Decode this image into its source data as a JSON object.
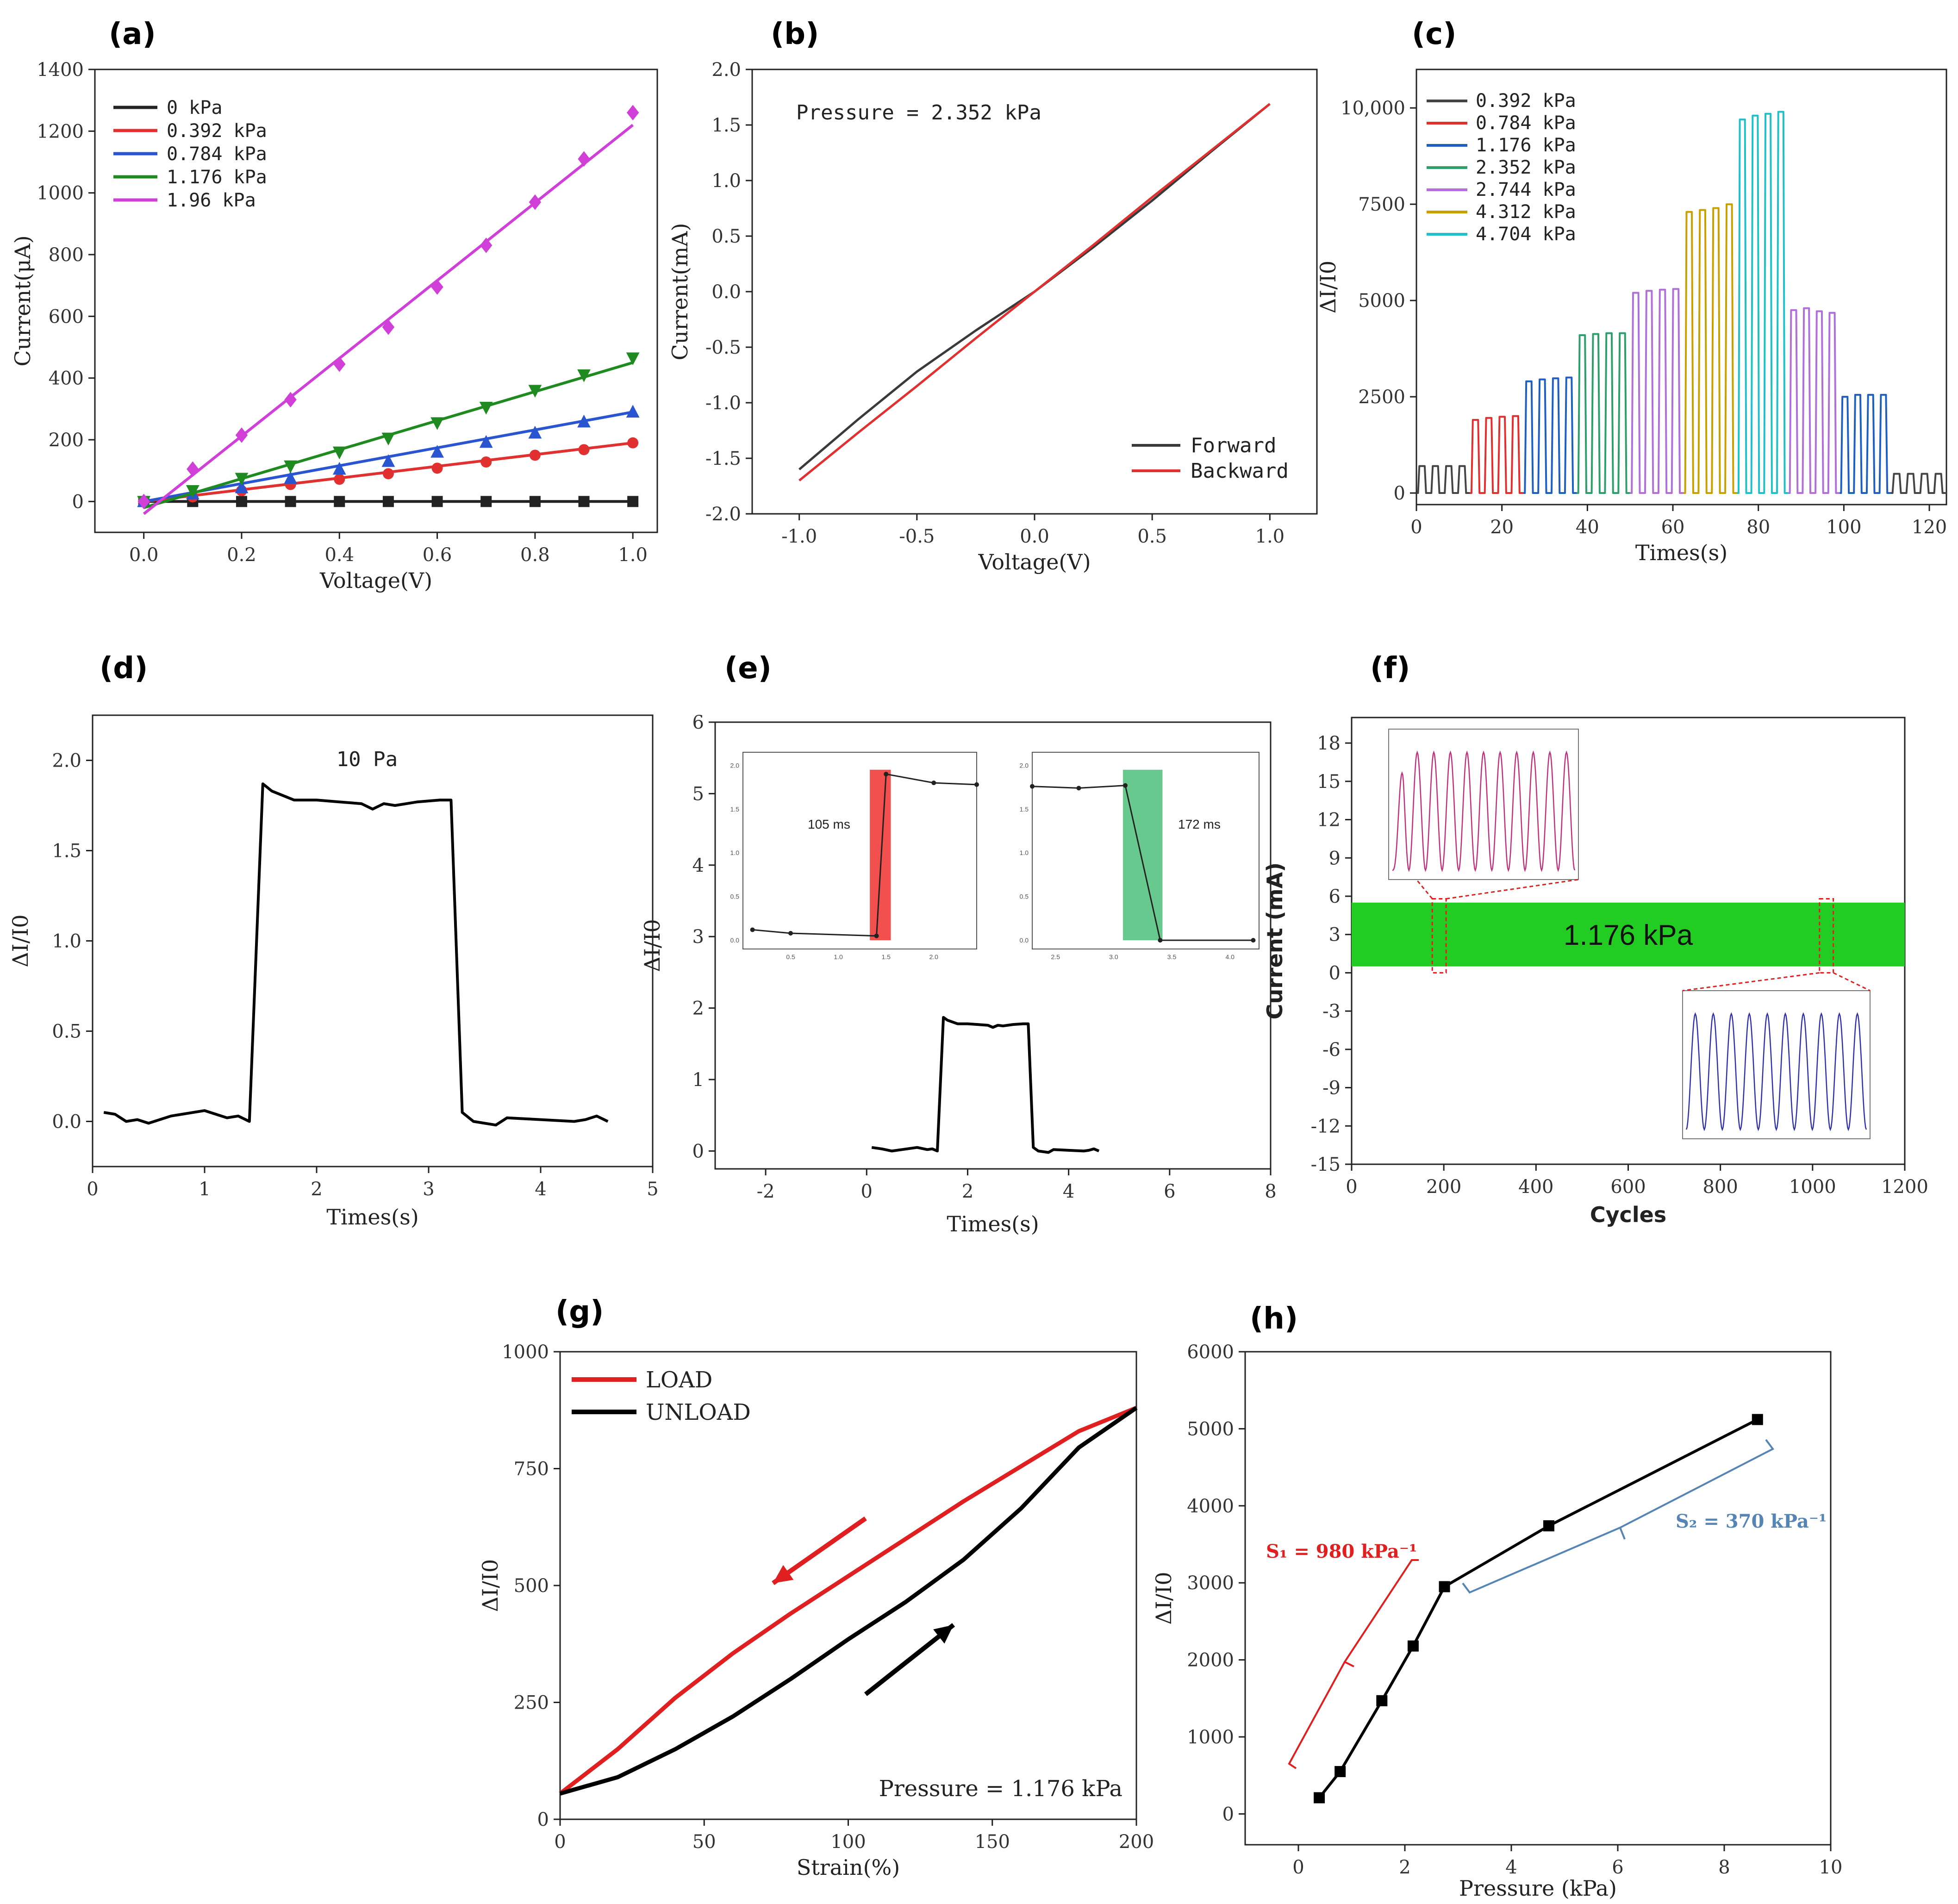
{
  "chart_data": [
    {
      "panel": "(a)",
      "type": "scatter",
      "xlabel": "Voltage(V)",
      "ylabel": "Current(μA)",
      "xlim": [
        -0.1,
        1.05
      ],
      "ylim": [
        -100,
        1400
      ],
      "xticks": [
        "0.0",
        "0.2",
        "0.4",
        "0.6",
        "0.8",
        "1.0"
      ],
      "yticks": [
        "0",
        "200",
        "400",
        "600",
        "800",
        "1000",
        "1200",
        "1400"
      ],
      "x": [
        0,
        0.1,
        0.2,
        0.3,
        0.4,
        0.5,
        0.6,
        0.7,
        0.8,
        0.9,
        1.0
      ],
      "series": [
        {
          "name": "0 kPa",
          "color": "#222222",
          "marker": "square",
          "values": [
            0,
            0,
            0,
            0,
            0,
            0,
            0,
            0,
            0,
            0,
            0
          ],
          "fit": [
            0,
            0
          ]
        },
        {
          "name": "0.392 kPa",
          "color": "#e03030",
          "marker": "circle",
          "values": [
            0,
            15,
            35,
            55,
            72,
            90,
            108,
            128,
            150,
            168,
            190
          ],
          "fit": [
            0,
            190
          ]
        },
        {
          "name": "0.784 kPa",
          "color": "#2a55d0",
          "marker": "triangle-up",
          "values": [
            0,
            25,
            45,
            75,
            105,
            130,
            160,
            192,
            222,
            258,
            290
          ],
          "fit": [
            0,
            290
          ]
        },
        {
          "name": "1.176 kPa",
          "color": "#1f8a1f",
          "marker": "triangle-down",
          "values": [
            0,
            35,
            75,
            115,
            160,
            205,
            255,
            305,
            360,
            410,
            465
          ],
          "fit": [
            -20,
            450
          ]
        },
        {
          "name": "1.96 kPa",
          "color": "#d040d8",
          "marker": "diamond",
          "values": [
            0,
            105,
            215,
            330,
            445,
            565,
            695,
            830,
            970,
            1110,
            1260
          ],
          "fit": [
            -40,
            1220
          ]
        }
      ]
    },
    {
      "panel": "(b)",
      "type": "line",
      "xlabel": "Voltage(V)",
      "ylabel": "Current(mA)",
      "xlim": [
        -1.2,
        1.2
      ],
      "ylim": [
        -2.0,
        2.0
      ],
      "xticks": [
        "-1.0",
        "-0.5",
        "0.0",
        "0.5",
        "1.0"
      ],
      "yticks": [
        "-2.0",
        "-1.5",
        "-1.0",
        "-0.5",
        "0.0",
        "0.5",
        "1.0",
        "1.5",
        "2.0"
      ],
      "annotation": "Pressure = 2.352 kPa",
      "series": [
        {
          "name": "Forward",
          "color": "#3a3a3a",
          "x": [
            -1.0,
            -0.75,
            -0.5,
            -0.25,
            0,
            0.25,
            0.5,
            0.75,
            1.0
          ],
          "values": [
            -1.6,
            -1.15,
            -0.72,
            -0.35,
            0,
            0.4,
            0.82,
            1.26,
            1.69
          ]
        },
        {
          "name": "Backward",
          "color": "#e03030",
          "x": [
            -1.0,
            -0.75,
            -0.5,
            -0.25,
            0,
            0.25,
            0.5,
            0.75,
            1.0
          ],
          "values": [
            -1.7,
            -1.27,
            -0.85,
            -0.42,
            0,
            0.42,
            0.85,
            1.27,
            1.69
          ]
        }
      ]
    },
    {
      "panel": "(c)",
      "type": "line",
      "xlabel": "Times(s)",
      "ylabel": "ΔI/I0",
      "xlim": [
        0,
        124
      ],
      "ylim": [
        -300,
        11000
      ],
      "xticks": [
        "0",
        "20",
        "40",
        "60",
        "80",
        "100",
        "120"
      ],
      "yticks": [
        "0",
        "2500",
        "5000",
        "7500",
        "10,000"
      ],
      "series": [
        {
          "name": "0.392 kPa",
          "color": "#444444",
          "segments": [
            [
              0,
              12.5
            ],
            [
              111,
              124
            ]
          ],
          "peaks": [
            700,
            700,
            700,
            700
          ],
          "peaks2": [
            500,
            500,
            500,
            500
          ]
        },
        {
          "name": "0.784 kPa",
          "color": "#e03030",
          "segments": [
            [
              12.5,
              25
            ]
          ],
          "peaks": [
            1900,
            1950,
            1980,
            2000
          ]
        },
        {
          "name": "1.176 kPa",
          "color": "#1f5fc0",
          "segments": [
            [
              25,
              37.5
            ],
            [
              99,
              111
            ]
          ],
          "peaks": [
            2900,
            2950,
            2980,
            3000
          ],
          "peaks2": [
            2500,
            2550,
            2550,
            2550
          ]
        },
        {
          "name": "2.352 kPa",
          "color": "#2e9e6a",
          "segments": [
            [
              37.5,
              50
            ]
          ],
          "peaks": [
            4100,
            4130,
            4150,
            4150
          ]
        },
        {
          "name": "2.744 kPa",
          "color": "#b070d8",
          "segments": [
            [
              50,
              62.5
            ],
            [
              87,
              99
            ]
          ],
          "peaks": [
            5200,
            5250,
            5280,
            5300
          ],
          "peaks2": [
            4750,
            4800,
            4720,
            4680
          ]
        },
        {
          "name": "4.312 kPa",
          "color": "#c8a000",
          "segments": [
            [
              62.5,
              75
            ]
          ],
          "peaks": [
            7300,
            7350,
            7400,
            7500
          ]
        },
        {
          "name": "4.704 kPa",
          "color": "#20c0c8",
          "segments": [
            [
              75,
              87
            ]
          ],
          "peaks": [
            9700,
            9800,
            9850,
            9900
          ]
        }
      ]
    },
    {
      "panel": "(d)",
      "type": "line",
      "xlabel": "Times(s)",
      "ylabel": "ΔI/I0",
      "xlim": [
        0,
        5
      ],
      "ylim": [
        -0.25,
        2.25
      ],
      "xticks": [
        "0",
        "1",
        "2",
        "3",
        "4",
        "5"
      ],
      "yticks": [
        "0.0",
        "0.5",
        "1.0",
        "1.5",
        "2.0"
      ],
      "annotation": "10 Pa",
      "x": [
        0.1,
        0.2,
        0.3,
        0.4,
        0.5,
        0.7,
        1.0,
        1.2,
        1.3,
        1.4,
        1.52,
        1.6,
        1.8,
        2.0,
        2.2,
        2.4,
        2.5,
        2.6,
        2.7,
        2.9,
        3.1,
        3.2,
        3.3,
        3.4,
        3.6,
        3.7,
        4.0,
        4.3,
        4.4,
        4.5,
        4.6
      ],
      "values": [
        0.05,
        0.04,
        0.0,
        0.01,
        -0.01,
        0.03,
        0.06,
        0.02,
        0.03,
        0.0,
        1.87,
        1.83,
        1.78,
        1.78,
        1.77,
        1.76,
        1.73,
        1.76,
        1.75,
        1.77,
        1.78,
        1.78,
        0.05,
        0.0,
        -0.02,
        0.02,
        0.01,
        0.0,
        0.01,
        0.03,
        0.0
      ]
    },
    {
      "panel": "(e)",
      "type": "line",
      "xlabel": "Times(s)",
      "ylabel": "ΔI/I0",
      "xlim": [
        -3,
        8
      ],
      "ylim": [
        -0.25,
        6
      ],
      "xticks": [
        "-2",
        "0",
        "2",
        "4",
        "6",
        "8"
      ],
      "yticks": [
        "0",
        "1",
        "2",
        "3",
        "4",
        "5",
        "6"
      ],
      "inset_rise": {
        "label": "105 ms",
        "xticks": [
          "0.5",
          "1.0",
          "1.5",
          "2.0"
        ],
        "yticks": [
          "0.0",
          "0.5",
          "1.0",
          "1.5",
          "2.0"
        ],
        "x": [
          0.1,
          0.5,
          1.4,
          1.5,
          2.0,
          2.45
        ],
        "values": [
          0.12,
          0.08,
          0.05,
          1.9,
          1.8,
          1.78
        ],
        "highlight": [
          1.33,
          1.55
        ],
        "color": "#f03030"
      },
      "inset_fall": {
        "label": "172 ms",
        "xticks": [
          "2.5",
          "3.0",
          "3.5",
          "4.0"
        ],
        "yticks": [
          "0.0",
          "0.5",
          "1.0",
          "1.5",
          "2.0"
        ],
        "x": [
          2.3,
          2.7,
          3.1,
          3.4,
          4.2
        ],
        "values": [
          1.76,
          1.74,
          1.77,
          0.0,
          0.0
        ],
        "highlight": [
          3.08,
          3.42
        ],
        "color": "#4cc07a"
      },
      "x": [
        0.1,
        0.3,
        0.5,
        0.7,
        1.0,
        1.2,
        1.3,
        1.4,
        1.52,
        1.6,
        1.8,
        2.0,
        2.2,
        2.4,
        2.5,
        2.6,
        2.7,
        2.9,
        3.1,
        3.2,
        3.3,
        3.4,
        3.6,
        3.7,
        4.0,
        4.3,
        4.4,
        4.5,
        4.6
      ],
      "values": [
        0.05,
        0.03,
        0.0,
        0.02,
        0.05,
        0.02,
        0.03,
        0.0,
        1.87,
        1.83,
        1.78,
        1.78,
        1.77,
        1.76,
        1.73,
        1.76,
        1.75,
        1.77,
        1.78,
        1.78,
        0.05,
        0.0,
        -0.02,
        0.02,
        0.01,
        0.0,
        0.01,
        0.03,
        0.0
      ]
    },
    {
      "panel": "(f)",
      "type": "area",
      "xlabel": "Cycles",
      "ylabel": "Current (mA)",
      "xlim": [
        0,
        1200
      ],
      "ylim": [
        -15,
        20
      ],
      "xticks": [
        "0",
        "200",
        "400",
        "600",
        "800",
        "1000",
        "1200"
      ],
      "yticks": [
        "-15",
        "-12",
        "-9",
        "-6",
        "-3",
        "0",
        "3",
        "6",
        "9",
        "12",
        "15",
        "18"
      ],
      "band": [
        0.5,
        5.2
      ],
      "color": "#22cc22",
      "annotation": "1.176 kPa",
      "zoom_windows": [
        [
          175,
          205
        ],
        [
          1015,
          1045
        ]
      ],
      "inset1_color": "#c0307a",
      "inset2_color": "#3030a8"
    },
    {
      "panel": "(g)",
      "type": "line",
      "xlabel": "Strain(%)",
      "ylabel": "ΔI/I0",
      "xlim": [
        0,
        200
      ],
      "ylim": [
        0,
        1000
      ],
      "xticks": [
        "0",
        "50",
        "100",
        "150",
        "200"
      ],
      "yticks": [
        "0",
        "250",
        "500",
        "750",
        "1000"
      ],
      "annotation": "Pressure = 1.176 kPa",
      "series": [
        {
          "name": "LOAD",
          "color": "#e02020",
          "x": [
            0,
            20,
            40,
            60,
            80,
            100,
            120,
            140,
            160,
            180,
            200
          ],
          "values": [
            55,
            150,
            260,
            355,
            440,
            520,
            600,
            680,
            755,
            830,
            880
          ]
        },
        {
          "name": "UNLOAD",
          "color": "#000000",
          "x": [
            0,
            20,
            40,
            60,
            80,
            100,
            120,
            140,
            160,
            180,
            200
          ],
          "values": [
            55,
            90,
            150,
            220,
            300,
            385,
            465,
            555,
            665,
            795,
            880
          ]
        }
      ]
    },
    {
      "panel": "(h)",
      "type": "line",
      "xlabel": "Pressure (kPa)",
      "ylabel": "ΔI/I0",
      "xlim": [
        -1,
        10
      ],
      "ylim": [
        -400,
        6000
      ],
      "xticks": [
        "0",
        "2",
        "4",
        "6",
        "8",
        "10"
      ],
      "yticks": [
        "0",
        "1000",
        "2000",
        "3000",
        "4000",
        "5000",
        "6000"
      ],
      "x": [
        0.392,
        0.784,
        1.568,
        2.156,
        2.744,
        4.704,
        8.624
      ],
      "values": [
        210,
        550,
        1470,
        2180,
        2950,
        3740,
        5120
      ],
      "s1_label": "S₁ = 980 kPa⁻¹",
      "s1_color": "#e02020",
      "s2_label": "S₂ = 370 kPa⁻¹",
      "s2_color": "#5585b5"
    }
  ]
}
